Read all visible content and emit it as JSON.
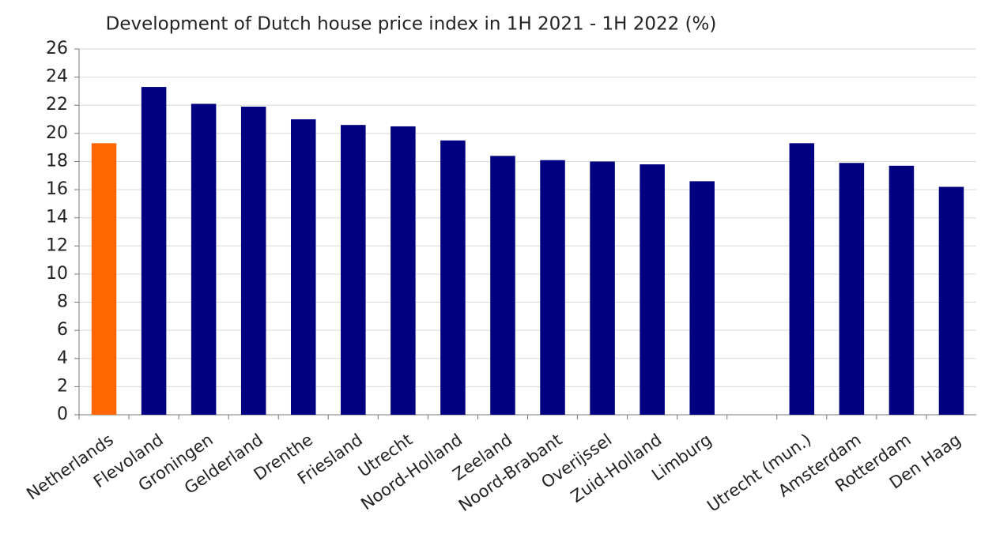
{
  "chart_data": {
    "type": "bar",
    "title": "Development of Dutch house price index in 1H 2021 - 1H 2022 (%)",
    "categories": [
      "Netherlands",
      "Flevoland",
      "Groningen",
      "Gelderland",
      "Drenthe",
      "Friesland",
      "Utrecht",
      "Noord-Holland",
      "Zeeland",
      "Noord-Brabant",
      "Overijssel",
      "Zuid-Holland",
      "Limburg",
      null,
      "Utrecht (mun.)",
      "Amsterdam",
      "Rotterdam",
      "Den Haag"
    ],
    "values": [
      19.3,
      23.3,
      22.1,
      21.9,
      21.0,
      20.6,
      20.5,
      19.5,
      18.4,
      18.1,
      18.0,
      17.8,
      16.6,
      null,
      19.3,
      17.9,
      17.7,
      16.2
    ],
    "colors": [
      "#ff6600",
      "#000080",
      "#000080",
      "#000080",
      "#000080",
      "#000080",
      "#000080",
      "#000080",
      "#000080",
      "#000080",
      "#000080",
      "#000080",
      "#000080",
      "#000080",
      "#000080",
      "#000080",
      "#000080",
      "#000080"
    ],
    "ylim": [
      0,
      26
    ],
    "yticks": [
      0,
      2,
      4,
      6,
      8,
      10,
      12,
      14,
      16,
      18,
      20,
      22,
      24,
      26
    ],
    "grid": true
  }
}
